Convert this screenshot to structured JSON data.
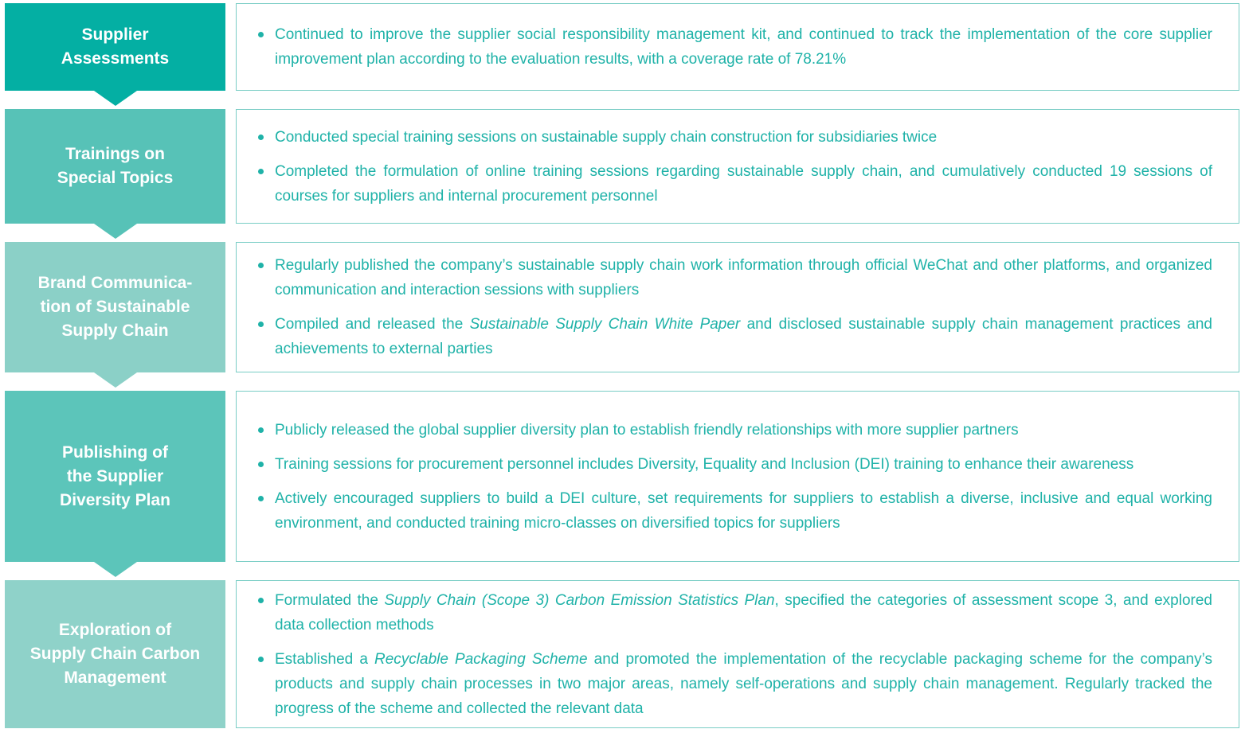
{
  "diagram": {
    "title": "Sustainable supply chain initiatives flow",
    "colors": {
      "background": "#FFFFFF",
      "stage_label_text": "#FFFFFF",
      "detail_border": "#79CDC5",
      "detail_text": "#1FB2A8",
      "stage_fills": [
        "#04AFA3",
        "#57C2B7",
        "#8BD0C7",
        "#5CC5BA",
        "#8FD2C9"
      ]
    },
    "rows": [
      {
        "label": "Supplier Assessments",
        "label_lines": [
          "Supplier",
          "Assessments"
        ],
        "bullets": [
          [
            {
              "text": "Continued to improve the supplier social responsibility management kit, and continued to track the implementation of the core supplier improvement plan according to the evaluation results, with a coverage rate of 78.21%",
              "italic": false
            }
          ]
        ]
      },
      {
        "label": "Trainings on Special Topics",
        "label_lines": [
          "Trainings on",
          "Special Topics"
        ],
        "bullets": [
          [
            {
              "text": "Conducted special training sessions on sustainable supply chain construction for subsidiaries twice",
              "italic": false
            }
          ],
          [
            {
              "text": "Completed the formulation of online training sessions regarding sustainable supply chain, and cumulatively conducted 19 sessions of courses for suppliers and internal procurement personnel",
              "italic": false
            }
          ]
        ]
      },
      {
        "label": "Brand Communication of Sustainable Supply Chain",
        "label_lines": [
          "Brand Communica-",
          "tion of Sustainable",
          "Supply Chain"
        ],
        "bullets": [
          [
            {
              "text": "Regularly published the company’s sustainable supply chain work information through official WeChat and other platforms, and organized communication and interaction sessions with suppliers",
              "italic": false
            }
          ],
          [
            {
              "text": "Compiled and released the ",
              "italic": false
            },
            {
              "text": "Sustainable Supply Chain White Paper",
              "italic": true
            },
            {
              "text": " and disclosed sustainable supply chain management practices and achievements to external parties",
              "italic": false
            }
          ]
        ]
      },
      {
        "label": "Publishing of the Supplier Diversity Plan",
        "label_lines": [
          "Publishing of",
          "the Supplier",
          "Diversity Plan"
        ],
        "bullets": [
          [
            {
              "text": "Publicly released the global supplier diversity plan to establish friendly relationships with more supplier partners",
              "italic": false
            }
          ],
          [
            {
              "text": "Training sessions for procurement personnel includes Diversity, Equality and Inclusion (DEI) training to enhance their awareness",
              "italic": false
            }
          ],
          [
            {
              "text": "Actively encouraged suppliers to build a DEI culture, set requirements for suppliers to establish a diverse, inclusive and equal working environment, and conducted training micro-classes on diversified topics for suppliers",
              "italic": false
            }
          ]
        ]
      },
      {
        "label": "Exploration of Supply Chain Carbon Management",
        "label_lines": [
          "Exploration of",
          "Supply Chain Carbon",
          "Management"
        ],
        "bullets": [
          [
            {
              "text": "Formulated the ",
              "italic": false
            },
            {
              "text": "Supply Chain (Scope 3) Carbon Emission Statistics Plan",
              "italic": true
            },
            {
              "text": ", specified the categories of assessment scope 3, and explored data collection methods",
              "italic": false
            }
          ],
          [
            {
              "text": "Established a ",
              "italic": false
            },
            {
              "text": "Recyclable Packaging Scheme",
              "italic": true
            },
            {
              "text": " and promoted the implementation of the recyclable packaging scheme for the company’s products and supply chain processes in two major areas, namely self-operations and supply chain management. Regularly tracked the progress of the scheme and collected the relevant data",
              "italic": false
            }
          ]
        ]
      }
    ]
  }
}
